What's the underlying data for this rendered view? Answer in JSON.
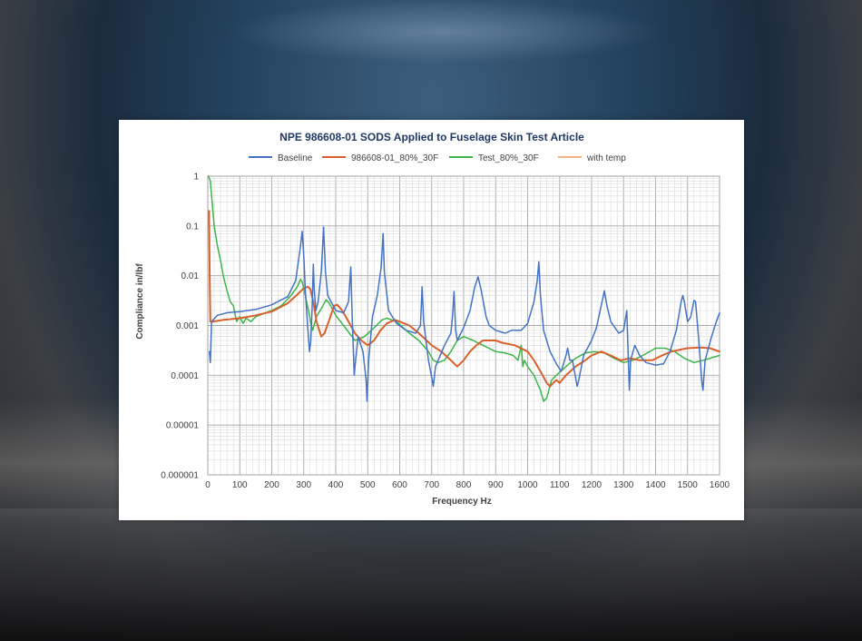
{
  "chart_data": {
    "type": "line",
    "title": "NPE 986608-01 SODS   Applied to Fuselage Skin Test Article",
    "xlabel": "Frequency Hz",
    "ylabel": "Compliance in/lbf",
    "xlim": [
      0,
      1600
    ],
    "ylim": [
      1e-06,
      1
    ],
    "yscale": "log",
    "x_ticks": [
      "0",
      "100",
      "200",
      "300",
      "400",
      "500",
      "600",
      "700",
      "800",
      "900",
      "1000",
      "1100",
      "1200",
      "1300",
      "1400",
      "1500",
      "1600"
    ],
    "y_ticks": [
      "1",
      "0.1",
      "0.01",
      "0.001",
      "0.0001",
      "0.00001",
      "0.000001"
    ],
    "grid": true,
    "legend_position": "top",
    "series": [
      {
        "name": "Baseline",
        "color": "#4472c4",
        "points": [
          [
            5,
            0.0003
          ],
          [
            8,
            0.00018
          ],
          [
            12,
            0.0012
          ],
          [
            30,
            0.0016
          ],
          [
            60,
            0.0018
          ],
          [
            100,
            0.0019
          ],
          [
            150,
            0.0021
          ],
          [
            200,
            0.0026
          ],
          [
            250,
            0.0038
          ],
          [
            275,
            0.008
          ],
          [
            290,
            0.04
          ],
          [
            295,
            0.078
          ],
          [
            300,
            0.025
          ],
          [
            305,
            0.005
          ],
          [
            312,
            0.001
          ],
          [
            318,
            0.0003
          ],
          [
            322,
            0.0005
          ],
          [
            326,
            0.002
          ],
          [
            330,
            0.017
          ],
          [
            333,
            0.005
          ],
          [
            338,
            0.002
          ],
          [
            345,
            0.003
          ],
          [
            355,
            0.012
          ],
          [
            362,
            0.095
          ],
          [
            368,
            0.012
          ],
          [
            375,
            0.004
          ],
          [
            400,
            0.002
          ],
          [
            425,
            0.0018
          ],
          [
            440,
            0.003
          ],
          [
            447,
            0.015
          ],
          [
            452,
            0.0012
          ],
          [
            458,
            0.0001
          ],
          [
            462,
            0.0002
          ],
          [
            470,
            0.0006
          ],
          [
            485,
            0.0003
          ],
          [
            495,
            8e-05
          ],
          [
            498,
            3e-05
          ],
          [
            503,
            0.0002
          ],
          [
            515,
            0.0015
          ],
          [
            530,
            0.004
          ],
          [
            542,
            0.015
          ],
          [
            548,
            0.07
          ],
          [
            552,
            0.012
          ],
          [
            565,
            0.002
          ],
          [
            590,
            0.0011
          ],
          [
            620,
            0.0008
          ],
          [
            650,
            0.0007
          ],
          [
            665,
            0.001
          ],
          [
            670,
            0.006
          ],
          [
            675,
            0.0012
          ],
          [
            690,
            0.0002
          ],
          [
            700,
            9e-05
          ],
          [
            705,
            6e-05
          ],
          [
            712,
            0.00015
          ],
          [
            740,
            0.0004
          ],
          [
            760,
            0.0007
          ],
          [
            765,
            0.0015
          ],
          [
            770,
            0.0048
          ],
          [
            775,
            0.0008
          ],
          [
            780,
            0.0005
          ],
          [
            800,
            0.0009
          ],
          [
            820,
            0.002
          ],
          [
            835,
            0.006
          ],
          [
            845,
            0.0095
          ],
          [
            855,
            0.005
          ],
          [
            870,
            0.0015
          ],
          [
            880,
            0.001
          ],
          [
            900,
            0.0008
          ],
          [
            930,
            0.0007
          ],
          [
            950,
            0.0008
          ],
          [
            980,
            0.0008
          ],
          [
            1000,
            0.0011
          ],
          [
            1020,
            0.003
          ],
          [
            1030,
            0.008
          ],
          [
            1035,
            0.019
          ],
          [
            1040,
            0.004
          ],
          [
            1050,
            0.0008
          ],
          [
            1070,
            0.0003
          ],
          [
            1090,
            0.00017
          ],
          [
            1105,
            0.00012
          ],
          [
            1120,
            0.00025
          ],
          [
            1125,
            0.00035
          ],
          [
            1132,
            0.0002
          ],
          [
            1140,
            0.0002
          ],
          [
            1155,
            6e-05
          ],
          [
            1160,
            8e-05
          ],
          [
            1175,
            0.00025
          ],
          [
            1200,
            0.0005
          ],
          [
            1215,
            0.0009
          ],
          [
            1230,
            0.0025
          ],
          [
            1240,
            0.005
          ],
          [
            1248,
            0.0025
          ],
          [
            1260,
            0.0012
          ],
          [
            1285,
            0.0007
          ],
          [
            1300,
            0.0008
          ],
          [
            1310,
            0.002
          ],
          [
            1315,
            0.0002
          ],
          [
            1318,
            5e-05
          ],
          [
            1322,
            0.0002
          ],
          [
            1335,
            0.0004
          ],
          [
            1350,
            0.00025
          ],
          [
            1370,
            0.00018
          ],
          [
            1400,
            0.00016
          ],
          [
            1425,
            0.00017
          ],
          [
            1445,
            0.0003
          ],
          [
            1465,
            0.0008
          ],
          [
            1480,
            0.003
          ],
          [
            1485,
            0.004
          ],
          [
            1490,
            0.003
          ],
          [
            1500,
            0.0012
          ],
          [
            1510,
            0.0015
          ],
          [
            1520,
            0.0032
          ],
          [
            1525,
            0.003
          ],
          [
            1535,
            0.0005
          ],
          [
            1545,
            7e-05
          ],
          [
            1548,
            5e-05
          ],
          [
            1555,
            0.0002
          ],
          [
            1575,
            0.0006
          ],
          [
            1590,
            0.0012
          ],
          [
            1600,
            0.0018
          ]
        ]
      },
      {
        "name": "986608-01_80%_30F",
        "color": "#d9602a",
        "points": [
          [
            4,
            0.2
          ],
          [
            6,
            0.01
          ],
          [
            8,
            0.0012
          ],
          [
            15,
            0.0012
          ],
          [
            50,
            0.0013
          ],
          [
            100,
            0.0014
          ],
          [
            150,
            0.0016
          ],
          [
            200,
            0.0019
          ],
          [
            250,
            0.0028
          ],
          [
            285,
            0.0045
          ],
          [
            300,
            0.0056
          ],
          [
            312,
            0.006
          ],
          [
            320,
            0.0055
          ],
          [
            330,
            0.003
          ],
          [
            340,
            0.0012
          ],
          [
            355,
            0.0006
          ],
          [
            365,
            0.0007
          ],
          [
            380,
            0.0013
          ],
          [
            395,
            0.0025
          ],
          [
            405,
            0.0026
          ],
          [
            420,
            0.002
          ],
          [
            440,
            0.0012
          ],
          [
            460,
            0.0007
          ],
          [
            480,
            0.0005
          ],
          [
            500,
            0.0004
          ],
          [
            520,
            0.0005
          ],
          [
            540,
            0.0008
          ],
          [
            560,
            0.0011
          ],
          [
            585,
            0.0013
          ],
          [
            600,
            0.0012
          ],
          [
            630,
            0.001
          ],
          [
            660,
            0.0007
          ],
          [
            700,
            0.0004
          ],
          [
            730,
            0.0003
          ],
          [
            760,
            0.0002
          ],
          [
            780,
            0.00015
          ],
          [
            800,
            0.0002
          ],
          [
            820,
            0.0003
          ],
          [
            840,
            0.0004
          ],
          [
            860,
            0.0005
          ],
          [
            880,
            0.0005
          ],
          [
            900,
            0.0005
          ],
          [
            920,
            0.00045
          ],
          [
            960,
            0.0004
          ],
          [
            1000,
            0.0003
          ],
          [
            1020,
            0.0002
          ],
          [
            1040,
            0.00012
          ],
          [
            1060,
            7e-05
          ],
          [
            1070,
            6e-05
          ],
          [
            1080,
            7e-05
          ],
          [
            1090,
            8e-05
          ],
          [
            1100,
            7e-05
          ],
          [
            1120,
            0.0001
          ],
          [
            1150,
            0.00015
          ],
          [
            1180,
            0.0002
          ],
          [
            1200,
            0.00025
          ],
          [
            1230,
            0.0003
          ],
          [
            1260,
            0.00025
          ],
          [
            1290,
            0.0002
          ],
          [
            1320,
            0.00022
          ],
          [
            1350,
            0.0002
          ],
          [
            1390,
            0.0002
          ],
          [
            1420,
            0.00025
          ],
          [
            1450,
            0.0003
          ],
          [
            1480,
            0.00033
          ],
          [
            1500,
            0.00035
          ],
          [
            1540,
            0.00036
          ],
          [
            1570,
            0.00035
          ],
          [
            1600,
            0.0003
          ]
        ]
      },
      {
        "name": "Test_80%_30F",
        "color": "#3cb54a",
        "points": [
          [
            2,
            1
          ],
          [
            8,
            0.8
          ],
          [
            12,
            0.4
          ],
          [
            20,
            0.1
          ],
          [
            30,
            0.04
          ],
          [
            40,
            0.02
          ],
          [
            50,
            0.009
          ],
          [
            60,
            0.005
          ],
          [
            70,
            0.003
          ],
          [
            80,
            0.0025
          ],
          [
            90,
            0.0012
          ],
          [
            100,
            0.0015
          ],
          [
            110,
            0.0011
          ],
          [
            120,
            0.0014
          ],
          [
            135,
            0.0012
          ],
          [
            150,
            0.0015
          ],
          [
            170,
            0.0017
          ],
          [
            200,
            0.002
          ],
          [
            230,
            0.0025
          ],
          [
            260,
            0.004
          ],
          [
            280,
            0.006
          ],
          [
            290,
            0.0085
          ],
          [
            295,
            0.0075
          ],
          [
            305,
            0.004
          ],
          [
            315,
            0.002
          ],
          [
            322,
            0.0011
          ],
          [
            328,
            0.0008
          ],
          [
            340,
            0.0015
          ],
          [
            360,
            0.0025
          ],
          [
            370,
            0.0033
          ],
          [
            380,
            0.0028
          ],
          [
            400,
            0.0016
          ],
          [
            430,
            0.0009
          ],
          [
            460,
            0.0005
          ],
          [
            490,
            0.0006
          ],
          [
            520,
            0.0009
          ],
          [
            545,
            0.0013
          ],
          [
            560,
            0.0014
          ],
          [
            590,
            0.0012
          ],
          [
            630,
            0.0007
          ],
          [
            660,
            0.0005
          ],
          [
            690,
            0.0003
          ],
          [
            705,
            0.0002
          ],
          [
            720,
            0.00018
          ],
          [
            740,
            0.0002
          ],
          [
            760,
            0.0003
          ],
          [
            780,
            0.0005
          ],
          [
            800,
            0.0006
          ],
          [
            830,
            0.0005
          ],
          [
            860,
            0.0004
          ],
          [
            900,
            0.0003
          ],
          [
            930,
            0.00028
          ],
          [
            955,
            0.00025
          ],
          [
            970,
            0.0002
          ],
          [
            980,
            0.0004
          ],
          [
            985,
            0.00015
          ],
          [
            990,
            0.0002
          ],
          [
            1000,
            0.00015
          ],
          [
            1020,
            0.0001
          ],
          [
            1040,
            5e-05
          ],
          [
            1050,
            3e-05
          ],
          [
            1060,
            3.5e-05
          ],
          [
            1075,
            8e-05
          ],
          [
            1090,
            0.0001
          ],
          [
            1120,
            0.00015
          ],
          [
            1150,
            0.00022
          ],
          [
            1180,
            0.00028
          ],
          [
            1210,
            0.0003
          ],
          [
            1240,
            0.00028
          ],
          [
            1270,
            0.00022
          ],
          [
            1300,
            0.00018
          ],
          [
            1330,
            0.0002
          ],
          [
            1360,
            0.00025
          ],
          [
            1400,
            0.00035
          ],
          [
            1430,
            0.00035
          ],
          [
            1460,
            0.0003
          ],
          [
            1490,
            0.00022
          ],
          [
            1520,
            0.00018
          ],
          [
            1550,
            0.0002
          ],
          [
            1580,
            0.00023
          ],
          [
            1600,
            0.00025
          ]
        ]
      },
      {
        "name": "with temp",
        "color": "#f4b183",
        "points": []
      }
    ]
  }
}
